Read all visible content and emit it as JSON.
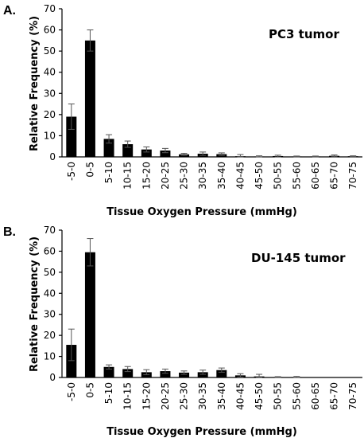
{
  "chart_data": [
    {
      "type": "bar",
      "panel_label": "A.",
      "title": "PC3 tumor",
      "xlabel": "Tissue  Oxygen Pressure (mmHg)",
      "ylabel": "Relative Frequency (%)",
      "ylim": [
        0,
        70
      ],
      "yticks": [
        "0",
        "10",
        "20",
        "30",
        "40",
        "50",
        "60",
        "70"
      ],
      "categories": [
        "-5-0",
        "0-5",
        "5-10",
        "10-15",
        "15-20",
        "20-25",
        "25-30",
        "30-35",
        "35-40",
        "40-45",
        "45-50",
        "50-55",
        "55-60",
        "60-65",
        "65-70",
        "70-75"
      ],
      "values": [
        19,
        55,
        8.5,
        6,
        3.5,
        3,
        1.2,
        1.5,
        1.3,
        0.3,
        0.2,
        0.4,
        0.2,
        0.2,
        0.5,
        0.3
      ],
      "errors": [
        6,
        5,
        2,
        1.5,
        1.2,
        1,
        0.5,
        0.8,
        0.6,
        0.8,
        0.3,
        0.4,
        0.2,
        0.2,
        0.4,
        0.2
      ]
    },
    {
      "type": "bar",
      "panel_label": "B.",
      "title": "DU-145 tumor",
      "xlabel": "Tissue  Oxygen Pressure (mmHg)",
      "ylabel": "Relative Frequency (%)",
      "ylim": [
        0,
        70
      ],
      "yticks": [
        "0",
        "10",
        "20",
        "30",
        "40",
        "50",
        "60",
        "70"
      ],
      "categories": [
        "-5-0",
        "0-5",
        "5-10",
        "10-15",
        "15-20",
        "20-25",
        "25-30",
        "30-35",
        "35-40",
        "40-45",
        "45-50",
        "50-55",
        "55-60",
        "60-65",
        "65-70",
        "70-75"
      ],
      "values": [
        15.5,
        59.5,
        5,
        4,
        2.5,
        3,
        2.3,
        2.5,
        3.5,
        1,
        0.5,
        0.2,
        0.2,
        0,
        0,
        0
      ],
      "errors": [
        7.5,
        6.5,
        1,
        1.2,
        1.2,
        1,
        0.8,
        1,
        1,
        0.8,
        1,
        0.2,
        0.3,
        0,
        0,
        0
      ]
    }
  ]
}
